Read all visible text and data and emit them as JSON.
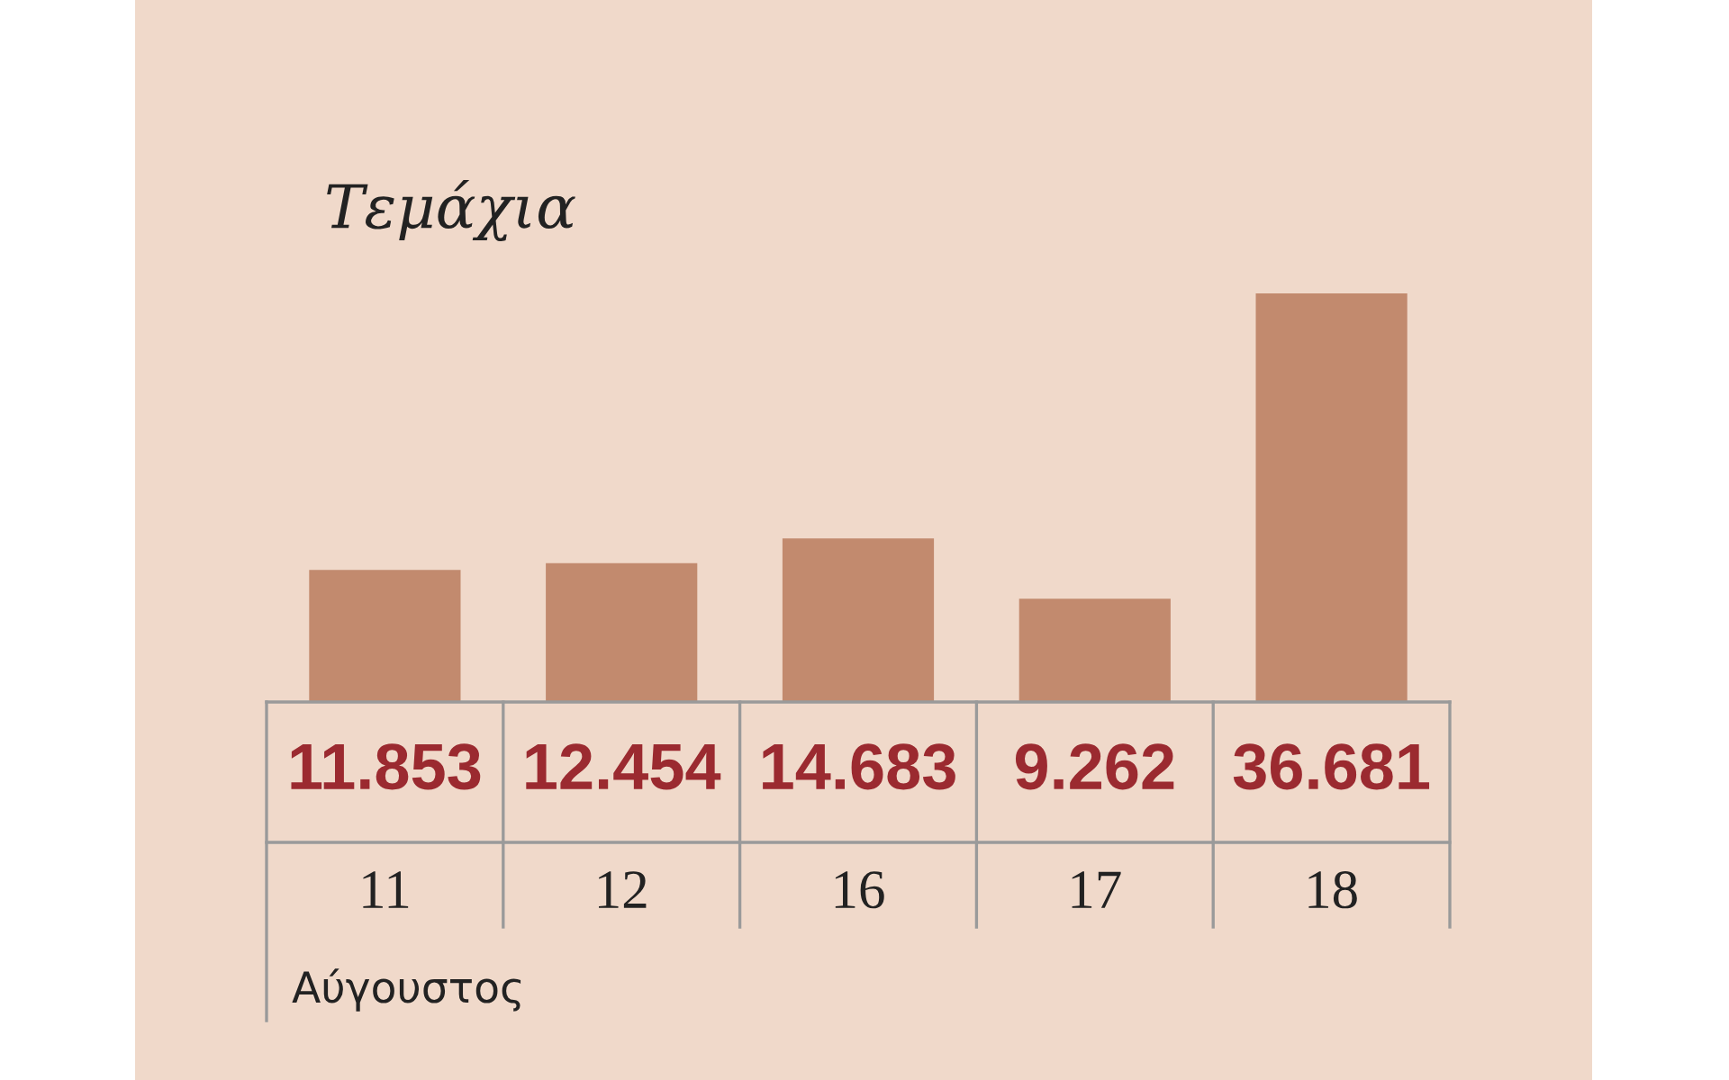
{
  "chart_data": {
    "type": "bar",
    "ylabel": "Τεμάχια",
    "xlabel": "Αύγουστος",
    "categories": [
      "11",
      "12",
      "16",
      "17",
      "18"
    ],
    "values": [
      11853,
      12454,
      14683,
      9262,
      36681
    ],
    "value_labels": [
      "11.853",
      "12.454",
      "14.683",
      "9.262",
      "36.681"
    ],
    "color": "#c28a6e"
  }
}
